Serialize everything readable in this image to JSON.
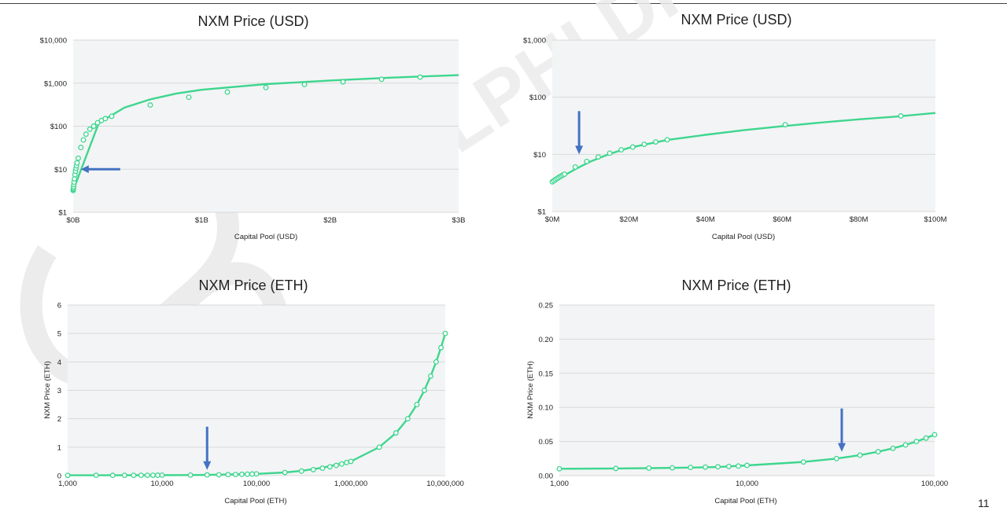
{
  "page": {
    "slide_number": "11",
    "watermark": "DELPHI DIGITAL"
  },
  "colors": {
    "series": "#3ed68f",
    "arrow": "#4472c4",
    "plot_background": "#f3f4f5",
    "grid": "#d9d9d9"
  },
  "chart_data": [
    {
      "id": "usd-full",
      "type": "line",
      "title": "NXM Price (USD)",
      "xlabel": "Capital Pool (USD)",
      "ylabel": "",
      "x_scale": "linear",
      "y_scale": "log",
      "xlim": [
        0,
        3000000000
      ],
      "ylim": [
        1,
        10000
      ],
      "x_ticks": [
        0,
        1000000000,
        2000000000,
        3000000000
      ],
      "x_tick_labels": [
        "$0B",
        "$1B",
        "$2B",
        "$3B"
      ],
      "y_ticks": [
        1,
        10,
        100,
        1000,
        10000
      ],
      "y_tick_labels": [
        "$1",
        "$10",
        "$100",
        "$1,000",
        "$10,000"
      ],
      "grid": "horizontal",
      "legend": "none",
      "series": [
        {
          "x": [
            0,
            200000000,
            400000000,
            600000000,
            800000000,
            1000000000,
            1500000000,
            2000000000,
            2500000000,
            3000000000
          ],
          "y": [
            3.2,
            120,
            270,
            420,
            570,
            700,
            950,
            1150,
            1350,
            1530
          ]
        }
      ],
      "markers": {
        "x": [
          0,
          1000000,
          2000000,
          3000000,
          5000000,
          7000000,
          10000000,
          14000000,
          18000000,
          22000000,
          26000000,
          30000000,
          40000000,
          60000000,
          80000000,
          100000000,
          130000000,
          160000000,
          190000000,
          220000000,
          250000000,
          300000000,
          600000000,
          900000000,
          1200000000,
          1500000000,
          1800000000,
          2100000000,
          2400000000,
          2700000000
        ],
        "y": [
          3.2,
          3.4,
          3.6,
          3.9,
          4.4,
          5,
          6,
          7.5,
          9,
          10.5,
          12,
          14,
          18,
          32,
          48,
          65,
          85,
          100,
          120,
          135,
          150,
          170,
          310,
          470,
          620,
          790,
          930,
          1070,
          1230,
          1380
        ]
      },
      "annotations": [
        {
          "type": "arrow",
          "direction": "left",
          "x": 60000000,
          "y": 10
        }
      ]
    },
    {
      "id": "usd-zoom",
      "type": "line",
      "title": "NXM Price (USD)",
      "xlabel": "Capital Pool (USD)",
      "ylabel": "",
      "x_scale": "linear",
      "y_scale": "log",
      "xlim": [
        0,
        100000000
      ],
      "ylim": [
        1,
        1000
      ],
      "x_ticks": [
        0,
        20000000,
        40000000,
        60000000,
        80000000,
        100000000
      ],
      "x_tick_labels": [
        "$0M",
        "$20M",
        "$40M",
        "$60M",
        "$80M",
        "$100M"
      ],
      "y_ticks": [
        1,
        10,
        100,
        1000
      ],
      "y_tick_labels": [
        "$1",
        "$10",
        "$100",
        "$1,000"
      ],
      "grid": "horizontal",
      "legend": "none",
      "series": [
        {
          "x": [
            0,
            2000000,
            4000000,
            6000000,
            10000000,
            15000000,
            20000000,
            30000000,
            40000000,
            50000000,
            60000000,
            70000000,
            80000000,
            90000000,
            100000000
          ],
          "y": [
            3.3,
            3.9,
            4.6,
            5.5,
            7.5,
            10.2,
            13,
            17.8,
            22,
            26.5,
            31,
            36,
            41,
            46,
            53
          ]
        }
      ],
      "markers": {
        "x": [
          0,
          400000,
          800000,
          1200000,
          1600000,
          2000000,
          2400000,
          2800000,
          3200000,
          6000000,
          9000000,
          12000000,
          15000000,
          18000000,
          21000000,
          24000000,
          27000000,
          30000000,
          60800000,
          91000000
        ],
        "y": [
          3.3,
          3.45,
          3.6,
          3.75,
          3.9,
          4.05,
          4.2,
          4.35,
          4.5,
          6,
          7.5,
          9,
          10.5,
          12,
          13.4,
          15,
          16.5,
          18,
          33,
          47
        ]
      },
      "annotations": [
        {
          "type": "arrow",
          "direction": "down",
          "x": 7000000,
          "y": 10
        }
      ]
    },
    {
      "id": "eth-full",
      "type": "line",
      "title": "NXM Price (ETH)",
      "xlabel": "Capital Pool (ETH)",
      "ylabel": "NXM Price (ETH)",
      "x_scale": "log",
      "y_scale": "linear",
      "xlim": [
        1000,
        10000000
      ],
      "ylim": [
        0,
        6
      ],
      "x_ticks": [
        1000,
        10000,
        100000,
        1000000,
        10000000
      ],
      "x_tick_labels": [
        "1,000",
        "10,000",
        "100,000",
        "1,000,000",
        "10,000,000"
      ],
      "y_ticks": [
        0,
        1,
        2,
        3,
        4,
        5,
        6
      ],
      "y_tick_labels": [
        "0",
        "1",
        "2",
        "3",
        "4",
        "5",
        "6"
      ],
      "grid": "horizontal",
      "legend": "none",
      "series": [
        {
          "x": [
            1000,
            10000,
            30000,
            100000,
            200000,
            300000,
            500000,
            1000000,
            2000000,
            3000000,
            4000000,
            5000000,
            6000000,
            7000000,
            8000000,
            9000000,
            10000000
          ],
          "y": [
            0.01,
            0.015,
            0.025,
            0.06,
            0.11,
            0.17,
            0.28,
            0.5,
            1.0,
            1.5,
            2.0,
            2.5,
            3.0,
            3.5,
            4.0,
            4.5,
            5.0
          ]
        }
      ],
      "markers": {
        "x": [
          1000,
          2000,
          3000,
          4000,
          5000,
          6000,
          7000,
          8000,
          9000,
          10000,
          20000,
          30000,
          40000,
          50000,
          60000,
          70000,
          80000,
          90000,
          100000,
          200000,
          300000,
          400000,
          500000,
          600000,
          700000,
          800000,
          900000,
          1000000,
          2000000,
          3000000,
          4000000,
          5000000,
          6000000,
          7000000,
          8000000,
          9000000,
          10000000
        ],
        "y": [
          0.01,
          0.011,
          0.011,
          0.012,
          0.012,
          0.012,
          0.013,
          0.013,
          0.014,
          0.015,
          0.02,
          0.025,
          0.03,
          0.035,
          0.04,
          0.045,
          0.05,
          0.055,
          0.06,
          0.11,
          0.16,
          0.21,
          0.26,
          0.31,
          0.36,
          0.41,
          0.46,
          0.5,
          1.0,
          1.5,
          2.0,
          2.5,
          3.0,
          3.5,
          4.0,
          4.5,
          5.0
        ]
      },
      "annotations": [
        {
          "type": "arrow",
          "direction": "down",
          "x": 30000,
          "y": 0.2
        }
      ]
    },
    {
      "id": "eth-zoom",
      "type": "line",
      "title": "NXM Price (ETH)",
      "xlabel": "Capital Pool (ETH)",
      "ylabel": "NXM Price (ETH)",
      "x_scale": "log",
      "y_scale": "linear",
      "xlim": [
        1000,
        100000
      ],
      "ylim": [
        0,
        0.25
      ],
      "x_ticks": [
        1000,
        10000,
        100000
      ],
      "x_tick_labels": [
        "1,000",
        "10,000",
        "100,000"
      ],
      "y_ticks": [
        0,
        0.05,
        0.1,
        0.15,
        0.2,
        0.25
      ],
      "y_tick_labels": [
        "0.00",
        "0.05",
        "0.10",
        "0.15",
        "0.20",
        "0.25"
      ],
      "grid": "horizontal",
      "legend": "none",
      "series": [
        {
          "x": [
            1000,
            2000,
            3000,
            5000,
            7000,
            10000,
            20000,
            30000,
            40000,
            50000,
            60000,
            70000,
            80000,
            90000,
            100000
          ],
          "y": [
            0.01,
            0.0105,
            0.011,
            0.0118,
            0.0125,
            0.015,
            0.02,
            0.025,
            0.03,
            0.035,
            0.04,
            0.045,
            0.05,
            0.055,
            0.06
          ]
        }
      ],
      "markers": {
        "x": [
          1000,
          2000,
          3000,
          4000,
          5000,
          6000,
          7000,
          8000,
          9000,
          10000,
          20000,
          30000,
          40000,
          50000,
          60000,
          70000,
          80000,
          90000,
          100000
        ],
        "y": [
          0.01,
          0.0105,
          0.011,
          0.0115,
          0.012,
          0.0125,
          0.013,
          0.0135,
          0.014,
          0.015,
          0.02,
          0.025,
          0.03,
          0.035,
          0.04,
          0.045,
          0.05,
          0.055,
          0.06
        ]
      },
      "annotations": [
        {
          "type": "arrow",
          "direction": "down",
          "x": 32000,
          "y": 0.035
        }
      ]
    }
  ]
}
